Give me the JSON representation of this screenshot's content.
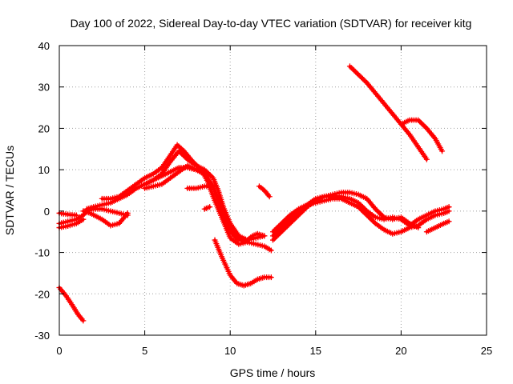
{
  "chart_data": {
    "type": "scatter",
    "title": "Day 100 of 2022, Sidereal Day-to-day VTEC variation (SDTVAR) for receiver kitg",
    "xlabel": "GPS time / hours",
    "ylabel": "SDTVAR / TECUs",
    "xlim": [
      0,
      25
    ],
    "ylim": [
      -30,
      40
    ],
    "xticks": [
      0,
      5,
      10,
      15,
      20,
      25
    ],
    "yticks": [
      -30,
      -20,
      -10,
      0,
      10,
      20,
      30,
      40
    ],
    "grid": true,
    "marker": "plus",
    "color": "#ff0000",
    "series": [
      {
        "name": "s1",
        "x": [
          0.0,
          0.4,
          0.8,
          1.1,
          1.4
        ],
        "y": [
          -18.5,
          -20.5,
          -23,
          -25,
          -26.5
        ]
      },
      {
        "name": "s2",
        "x": [
          0.0,
          0.5,
          1.0
        ],
        "y": [
          -0.5,
          -0.8,
          -1.0
        ]
      },
      {
        "name": "s3",
        "x": [
          0.0,
          0.5,
          1.0,
          1.4
        ],
        "y": [
          -4,
          -3.6,
          -3.0,
          -2.0
        ]
      },
      {
        "name": "s4",
        "x": [
          0.0,
          0.5,
          1.0,
          1.4,
          1.6,
          2.0,
          2.5,
          3.0,
          3.5,
          4.0
        ],
        "y": [
          -3.0,
          -2.5,
          -2.0,
          -1.0,
          0.0,
          0.5,
          0.5,
          0.0,
          -0.5,
          -1.0
        ]
      },
      {
        "name": "s5",
        "x": [
          1.4,
          1.8,
          2.5,
          3.0,
          3.5,
          4.0
        ],
        "y": [
          0.0,
          -0.5,
          -2.0,
          -3.5,
          -3.0,
          -0.5
        ]
      },
      {
        "name": "s6",
        "x": [
          1.6,
          2.0,
          2.5,
          3.0,
          3.5,
          4.0,
          4.5,
          5.0,
          5.5,
          6.0,
          6.5,
          7.0,
          7.5,
          8.0,
          8.5,
          9.0,
          9.5,
          10.0,
          10.5,
          11.0
        ],
        "y": [
          0.5,
          1.0,
          1.5,
          2.0,
          3.0,
          4.0,
          5.5,
          6.5,
          7.5,
          8.5,
          9.5,
          10.5,
          10.5,
          10.0,
          9.0,
          6.0,
          1.0,
          -4.0,
          -6.5,
          -7.0
        ]
      },
      {
        "name": "s7",
        "x": [
          2.5,
          3.0,
          3.5,
          4.0,
          4.5,
          5.0,
          5.5,
          6.0,
          6.5,
          6.9,
          7.3,
          7.8,
          8.3,
          8.7,
          9.0,
          9.5,
          10.0,
          10.5,
          11.0,
          11.5,
          12.0,
          12.4
        ],
        "y": [
          3.0,
          3.0,
          3.5,
          5.0,
          6.5,
          8.0,
          9.0,
          10.5,
          13.5,
          16.0,
          14.5,
          12.0,
          10.0,
          7.0,
          3.5,
          -1.5,
          -6.5,
          -8.0,
          -7.5,
          -8.0,
          -8.5,
          -9.5
        ]
      },
      {
        "name": "s8",
        "x": [
          5.0,
          5.5,
          6.0,
          6.5,
          7.0,
          7.5,
          8.0,
          8.5,
          9.0,
          9.3,
          9.6,
          10.0,
          10.5,
          11.0,
          11.5,
          12.0
        ],
        "y": [
          6.5,
          7.5,
          9.0,
          12.0,
          14.5,
          12.5,
          11.0,
          10.0,
          8.0,
          5.0,
          1.0,
          -3.0,
          -6.0,
          -7.0,
          -6.5,
          -6.0
        ]
      },
      {
        "name": "s9",
        "x": [
          5.0,
          5.5,
          6.0,
          6.5,
          7.0,
          7.5,
          8.0,
          8.5,
          9.0,
          9.5,
          10.0,
          10.5,
          11.0
        ],
        "y": [
          5.5,
          6.0,
          6.5,
          8.0,
          9.5,
          11.0,
          10.0,
          9.0,
          6.0,
          0.0,
          -5.0,
          -7.0,
          -7.5
        ]
      },
      {
        "name": "s10",
        "x": [
          7.5,
          8.0,
          8.5,
          9.0
        ],
        "y": [
          5.5,
          5.5,
          6.0,
          6.0
        ]
      },
      {
        "name": "s11",
        "x": [
          8.5,
          8.8
        ],
        "y": [
          0.5,
          1.0
        ]
      },
      {
        "name": "s12",
        "x": [
          11.0,
          11.3,
          11.6,
          12.0
        ],
        "y": [
          -7.0,
          -6.0,
          -5.5,
          -6.0
        ]
      },
      {
        "name": "s13",
        "x": [
          9.1,
          9.5,
          10.0,
          10.4,
          10.8,
          11.2,
          11.6,
          12.0,
          12.4
        ],
        "y": [
          -7.0,
          -11.0,
          -15.5,
          -17.5,
          -18.0,
          -17.5,
          -16.5,
          -16.0,
          -16.0
        ]
      },
      {
        "name": "s14",
        "x": [
          11.7,
          12.0,
          12.3
        ],
        "y": [
          6.0,
          5.0,
          3.5
        ]
      },
      {
        "name": "s15",
        "x": [
          12.5,
          13.0,
          13.5,
          14.0,
          14.5,
          15.0,
          15.5,
          16.0,
          16.5,
          17.0,
          17.5,
          18.0,
          18.5,
          19.0,
          19.5,
          20.0,
          20.5,
          21.0
        ],
        "y": [
          -7.0,
          -5.0,
          -3.0,
          -1.0,
          1.0,
          2.5,
          3.5,
          4.0,
          4.5,
          4.5,
          4.0,
          3.0,
          0.5,
          -1.5,
          -2.0,
          -1.5,
          -3.0,
          -4.0
        ]
      },
      {
        "name": "s16",
        "x": [
          12.5,
          13.0,
          13.5,
          14.0,
          14.5,
          15.0,
          15.5,
          16.0,
          16.5,
          17.0,
          17.5,
          18.0,
          18.5,
          19.0,
          19.5,
          20.0,
          20.5,
          21.0,
          21.5,
          22.0,
          22.5,
          22.8
        ],
        "y": [
          -5.0,
          -3.0,
          -1.0,
          0.5,
          1.5,
          3.0,
          3.5,
          3.5,
          3.5,
          3.0,
          2.0,
          0.0,
          -1.5,
          -2.0,
          -1.5,
          -2.0,
          -3.5,
          -2.0,
          -1.0,
          0.0,
          0.5,
          1.0
        ]
      },
      {
        "name": "s17",
        "x": [
          12.5,
          13.0,
          13.5,
          14.0,
          14.5,
          15.0,
          15.5,
          16.0,
          16.5,
          17.0,
          17.5,
          18.0,
          18.5,
          19.0,
          19.5,
          20.0,
          20.5,
          21.0,
          21.5,
          22.0,
          22.5,
          22.8
        ],
        "y": [
          -6.0,
          -4.0,
          -2.0,
          0.0,
          1.5,
          2.0,
          2.5,
          3.0,
          3.0,
          2.0,
          1.0,
          -1.0,
          -3.0,
          -4.5,
          -5.5,
          -5.0,
          -4.0,
          -3.5,
          -2.0,
          -1.0,
          -0.5,
          0.0
        ]
      },
      {
        "name": "s18",
        "x": [
          21.5,
          22.0,
          22.5,
          22.8
        ],
        "y": [
          -5.0,
          -4.0,
          -3.0,
          -2.5
        ]
      },
      {
        "name": "s19",
        "x": [
          17.0,
          17.5,
          18.0,
          18.5,
          19.0,
          19.5,
          20.0,
          20.5,
          21.0,
          21.5
        ],
        "y": [
          35.0,
          33.0,
          31.0,
          28.5,
          26.0,
          23.5,
          21.0,
          18.5,
          15.5,
          12.5
        ]
      },
      {
        "name": "s20",
        "x": [
          20.0,
          20.5,
          21.0,
          21.5,
          22.0,
          22.4
        ],
        "y": [
          21.0,
          22.0,
          22.0,
          20.0,
          17.5,
          14.5
        ]
      }
    ]
  }
}
